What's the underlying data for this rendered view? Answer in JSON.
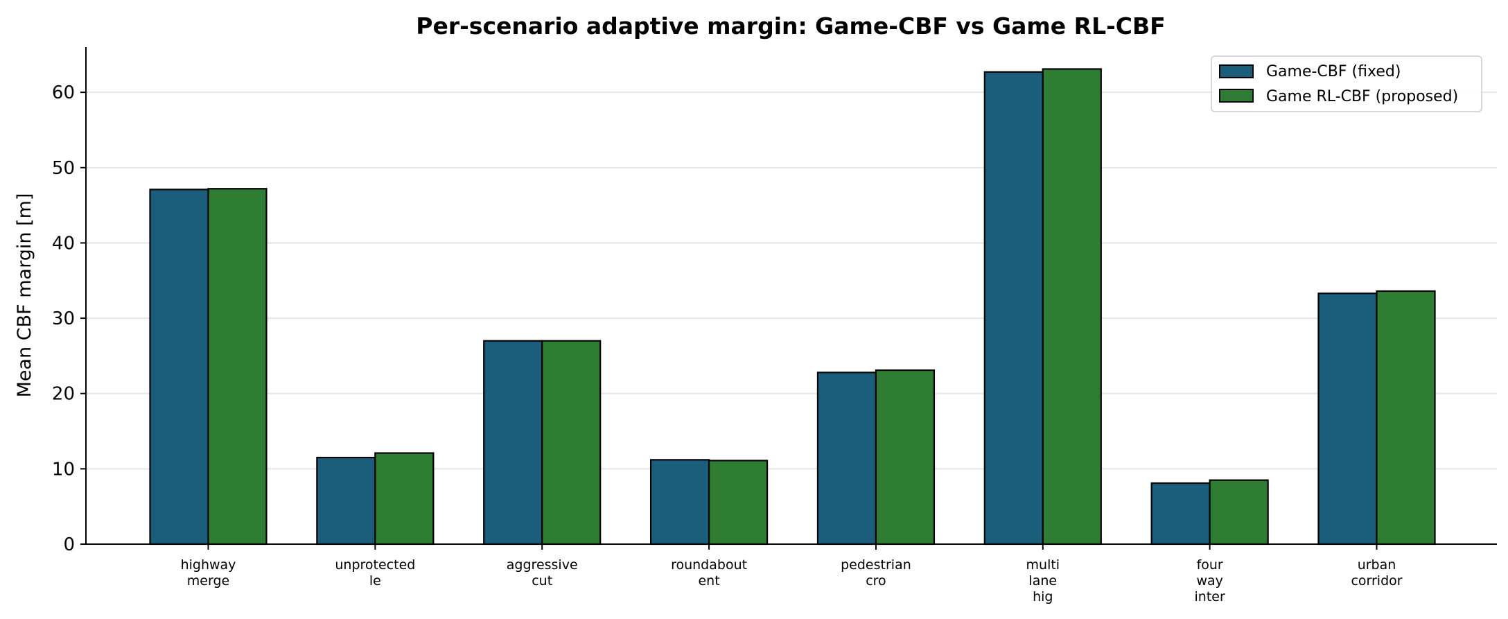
{
  "chart_data": {
    "type": "bar",
    "title": "Per-scenario adaptive margin: Game-CBF vs Game RL-CBF",
    "xlabel": "",
    "ylabel": "Mean CBF margin [m]",
    "ylim": [
      0,
      66
    ],
    "yticks": [
      "0",
      "10",
      "20",
      "30",
      "40",
      "50",
      "60"
    ],
    "grid": "horizontal",
    "legend_position": "top-right",
    "categories": [
      [
        "highway",
        "merge"
      ],
      [
        "unprotected",
        "le"
      ],
      [
        "aggressive",
        "cut"
      ],
      [
        "roundabout",
        "ent"
      ],
      [
        "pedestrian",
        "cro"
      ],
      [
        "multi",
        "lane",
        "hig"
      ],
      [
        "four",
        "way",
        "inter"
      ],
      [
        "urban",
        "corridor"
      ]
    ],
    "series": [
      {
        "name": "Game-CBF (fixed)",
        "color": "#1b5e7b",
        "values": [
          47.1,
          11.5,
          27.0,
          11.2,
          22.8,
          62.7,
          8.1,
          33.3
        ]
      },
      {
        "name": "Game RL-CBF (proposed)",
        "color": "#2e7d32",
        "values": [
          47.2,
          12.1,
          27.0,
          11.1,
          23.1,
          63.1,
          8.5,
          33.6
        ]
      }
    ]
  }
}
